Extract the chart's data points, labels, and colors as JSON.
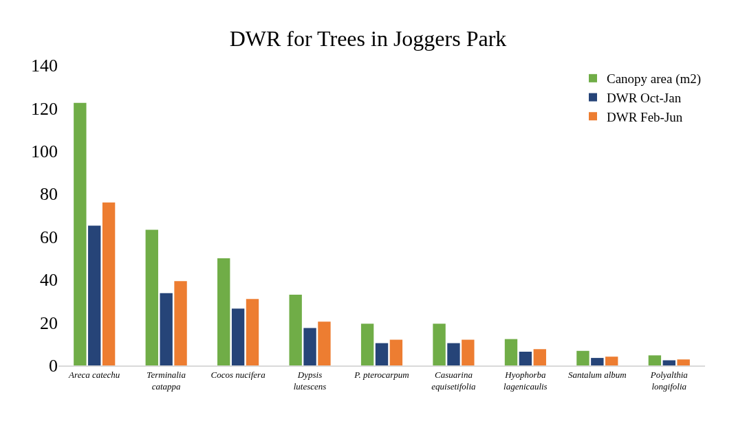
{
  "chart_data": {
    "type": "bar",
    "title": "DWR for Trees in Joggers Park",
    "categories": [
      "Areca catechu",
      "Terminalia\ncatappa",
      "Cocos nucifera",
      "Dypsis\nlutescens",
      "P. pterocarpum",
      "Casuarina\nequisetifolia",
      "Hyophorba\nlagenicaulis",
      "Santalum album",
      "Polyalthia\nlongifolia"
    ],
    "series": [
      {
        "name": "Canopy area (m2)",
        "color": "#70ad47",
        "values": [
          122.5,
          63.3,
          50.0,
          33.0,
          19.5,
          19.5,
          12.3,
          6.8,
          4.7
        ]
      },
      {
        "name": "DWR Oct-Jan",
        "color": "#264478",
        "values": [
          65.2,
          33.7,
          26.5,
          17.5,
          10.4,
          10.4,
          6.4,
          3.5,
          2.4
        ]
      },
      {
        "name": "DWR Feb-Jun",
        "color": "#ed7d31",
        "values": [
          76.0,
          39.3,
          31.0,
          20.4,
          12.0,
          12.0,
          7.6,
          4.1,
          2.8
        ]
      }
    ],
    "ylim": [
      0,
      140
    ],
    "yticks": [
      0,
      20,
      40,
      60,
      80,
      100,
      120,
      140
    ],
    "grid": false,
    "legend": "top right"
  }
}
